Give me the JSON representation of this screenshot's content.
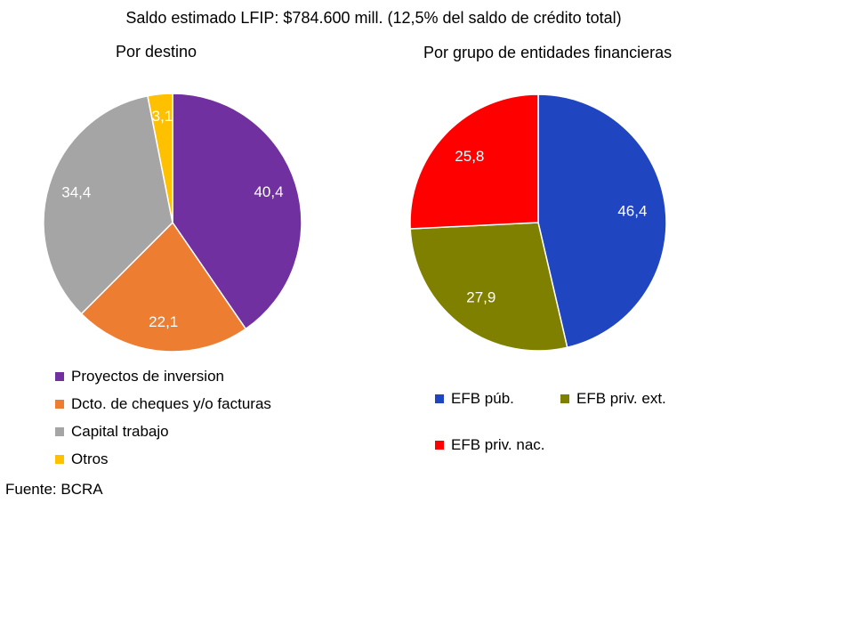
{
  "title": "Saldo estimado LFIP: $784.600 mill. (12,5% del saldo de crédito total)",
  "source": "Fuente: BCRA",
  "chart_data": [
    {
      "type": "pie",
      "title": "Por destino",
      "start_angle_deg": 0,
      "direction": "clockwise",
      "slices": [
        {
          "label": "Proyectos de inversion",
          "value": 40.4,
          "display": "40,4",
          "color": "#7030A0"
        },
        {
          "label": "Dcto. de cheques y/o facturas",
          "value": 22.1,
          "display": "22,1",
          "color": "#ED7D31"
        },
        {
          "label": "Capital trabajo",
          "value": 34.4,
          "display": "34,4",
          "color": "#A5A5A5"
        },
        {
          "label": "Otros",
          "value": 3.1,
          "display": "3,1",
          "color": "#FFC000"
        }
      ],
      "legend_position": "bottom"
    },
    {
      "type": "pie",
      "title": "Por grupo de entidades financieras",
      "start_angle_deg": 0,
      "direction": "clockwise",
      "slices": [
        {
          "label": "EFB púb.",
          "value": 46.4,
          "display": "46,4",
          "color": "#1F45C0"
        },
        {
          "label": "EFB priv. ext.",
          "value": 27.9,
          "display": "27,9",
          "color": "#808000"
        },
        {
          "label": "EFB priv. nac.",
          "value": 25.8,
          "display": "25,8",
          "color": "#FF0000"
        }
      ],
      "legend_position": "bottom"
    }
  ]
}
